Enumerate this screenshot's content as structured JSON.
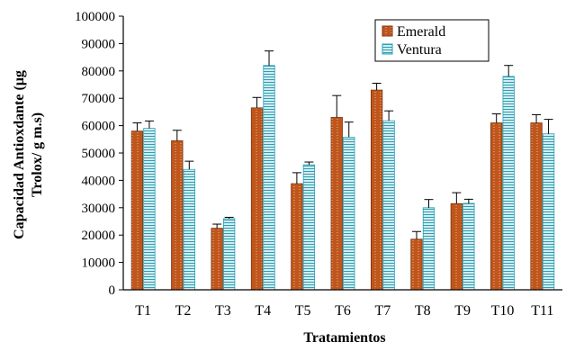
{
  "chart_data": {
    "type": "bar",
    "title": "",
    "xlabel": "Tratamientos",
    "ylabel": "Capacidad Antioxdante (μg Trolox/ g m.s)",
    "categories": [
      "T1",
      "T2",
      "T3",
      "T4",
      "T5",
      "T6",
      "T7",
      "T8",
      "T9",
      "T10",
      "T11"
    ],
    "ylim": [
      0,
      100000
    ],
    "yticks": [
      0,
      10000,
      20000,
      30000,
      40000,
      50000,
      60000,
      70000,
      80000,
      90000,
      100000
    ],
    "grid": false,
    "legend_position": "top-right",
    "series": [
      {
        "name": "Emerald",
        "color": "#C0561B",
        "pattern": "dotted-vertical",
        "values": [
          58000,
          54500,
          22500,
          66500,
          38800,
          63000,
          73000,
          18500,
          31500,
          61000,
          61000
        ],
        "errors": [
          3000,
          3800,
          1500,
          3800,
          4000,
          8000,
          2500,
          2800,
          4000,
          3300,
          3000
        ]
      },
      {
        "name": "Ventura",
        "color": "#2A9FB4",
        "pattern": "horizontal-lines",
        "values": [
          59000,
          44000,
          26000,
          82000,
          45700,
          55800,
          61800,
          30000,
          31600,
          78000,
          57000
        ],
        "errors": [
          2700,
          3000,
          500,
          5300,
          1000,
          5500,
          3600,
          3000,
          1500,
          4000,
          5300
        ]
      }
    ]
  }
}
